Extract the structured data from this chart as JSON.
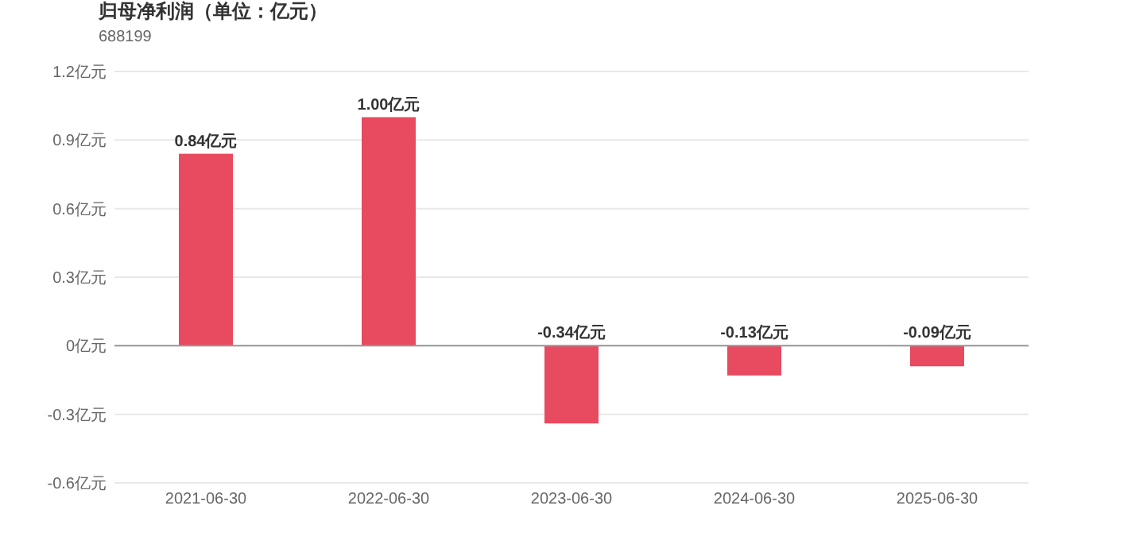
{
  "chart_data": {
    "type": "bar",
    "title": "归母净利润（单位：亿元）",
    "subtitle": "688199",
    "categories": [
      "2021-06-30",
      "2022-06-30",
      "2023-06-30",
      "2024-06-30",
      "2025-06-30"
    ],
    "values": [
      0.84,
      1.0,
      -0.34,
      -0.13,
      -0.09
    ],
    "value_labels": [
      "0.84亿元",
      "1.00亿元",
      "-0.34亿元",
      "-0.13亿元",
      "-0.09亿元"
    ],
    "color": "#e84a5f",
    "ylim": [
      -0.6,
      1.2
    ],
    "yticks": [
      {
        "value": -0.6,
        "label": "-0.6亿元"
      },
      {
        "value": -0.3,
        "label": "-0.3亿元"
      },
      {
        "value": 0,
        "label": "0亿元"
      },
      {
        "value": 0.3,
        "label": "0.3亿元"
      },
      {
        "value": 0.6,
        "label": "0.6亿元"
      },
      {
        "value": 0.9,
        "label": "0.9亿元"
      },
      {
        "value": 1.2,
        "label": "1.2亿元"
      }
    ],
    "grid": "y"
  }
}
